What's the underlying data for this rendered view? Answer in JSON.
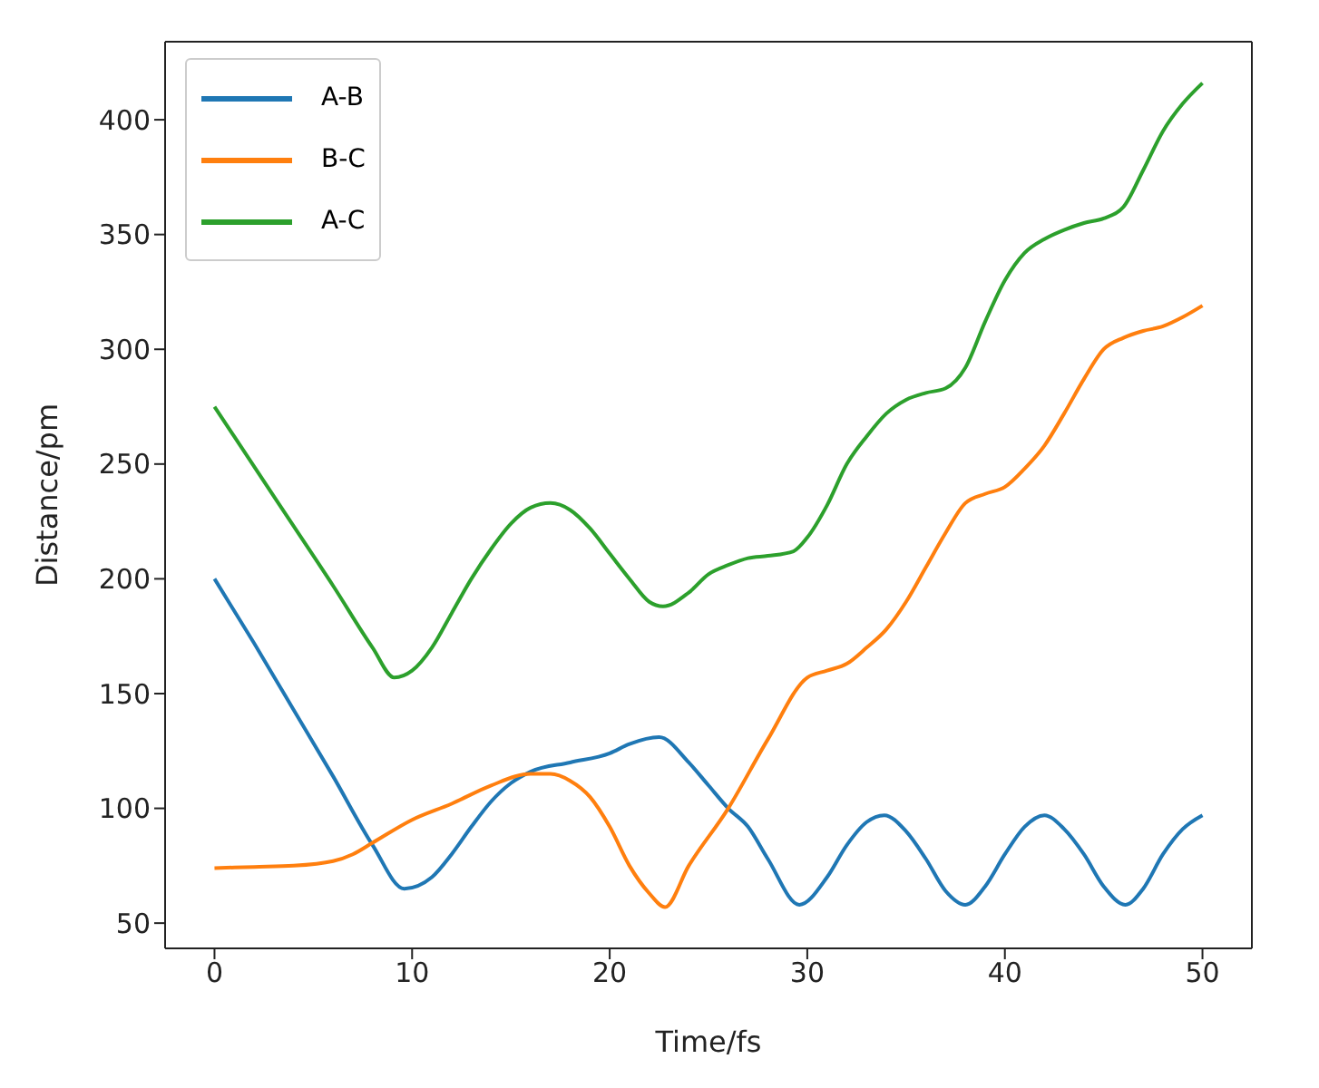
{
  "chart_data": {
    "type": "line",
    "xlabel": "Time/fs",
    "ylabel": "Distance/pm",
    "xlim": [
      -2.5,
      52.5
    ],
    "ylim": [
      39,
      434
    ],
    "xticks": [
      0,
      10,
      20,
      30,
      40,
      50
    ],
    "yticks": [
      50,
      100,
      150,
      200,
      250,
      300,
      350,
      400
    ],
    "grid": false,
    "legend": "top left",
    "marker": "none",
    "line_style": "solid",
    "series": [
      {
        "name": "A-B",
        "color": "#1f77b4",
        "x": [
          0,
          2,
          4,
          6,
          8,
          9.6,
          11,
          12,
          13,
          14,
          15,
          16,
          18,
          20,
          21,
          22.5,
          24,
          25,
          26,
          27,
          28,
          29.6,
          31,
          32,
          33,
          33.9,
          35,
          36,
          37,
          38,
          39,
          40,
          41,
          42,
          43,
          44,
          45,
          46.1,
          47,
          48,
          49,
          50
        ],
        "values": [
          200,
          172,
          143,
          114,
          84,
          65,
          70,
          80,
          92,
          103,
          111,
          116,
          120,
          124,
          128,
          131,
          120,
          110,
          100,
          92,
          78,
          58,
          70,
          84,
          94,
          97,
          90,
          78,
          64,
          58,
          66,
          80,
          92,
          97,
          91,
          80,
          66,
          58,
          65,
          80,
          91,
          97
        ]
      },
      {
        "name": "B-C",
        "color": "#ff7f0e",
        "x": [
          0,
          2,
          4,
          6,
          7,
          8,
          10,
          12,
          14,
          16,
          17,
          18,
          19,
          20,
          21,
          22,
          22.8,
          24,
          26,
          28,
          30,
          31,
          32,
          33,
          34,
          35,
          36,
          37,
          38,
          39,
          40,
          41,
          42,
          43,
          44,
          45,
          46,
          47,
          48,
          49,
          50
        ],
        "values": [
          74,
          74.5,
          75,
          77,
          80,
          85,
          95,
          102,
          110,
          115,
          115,
          112,
          105,
          92,
          75,
          63,
          57,
          75,
          100,
          130,
          157,
          160,
          163,
          170,
          178,
          190,
          205,
          220,
          233,
          237,
          240,
          248,
          258,
          272,
          287,
          300,
          305,
          308,
          310,
          314,
          319
        ]
      },
      {
        "name": "A-C",
        "color": "#2ca02c",
        "x": [
          0,
          2,
          4,
          6,
          8,
          9.1,
          10,
          11,
          12,
          13,
          14,
          15,
          16,
          17,
          18,
          19,
          20,
          21,
          22,
          22.7,
          24,
          25,
          26,
          27,
          28,
          29.3,
          30,
          31,
          32,
          33,
          34,
          35,
          36,
          37,
          38,
          39,
          40,
          41,
          42,
          43,
          44,
          45,
          46,
          47,
          48,
          49,
          50
        ],
        "values": [
          275,
          249,
          223,
          197,
          170,
          157,
          160,
          170,
          185,
          200,
          213,
          224,
          231,
          233,
          230,
          222,
          211,
          200,
          190,
          188,
          194,
          202,
          206,
          209,
          210,
          212,
          218,
          232,
          250,
          262,
          272,
          278,
          281,
          283,
          292,
          312,
          330,
          342,
          348,
          352,
          355,
          357,
          362,
          378,
          395,
          407,
          416
        ]
      }
    ]
  }
}
